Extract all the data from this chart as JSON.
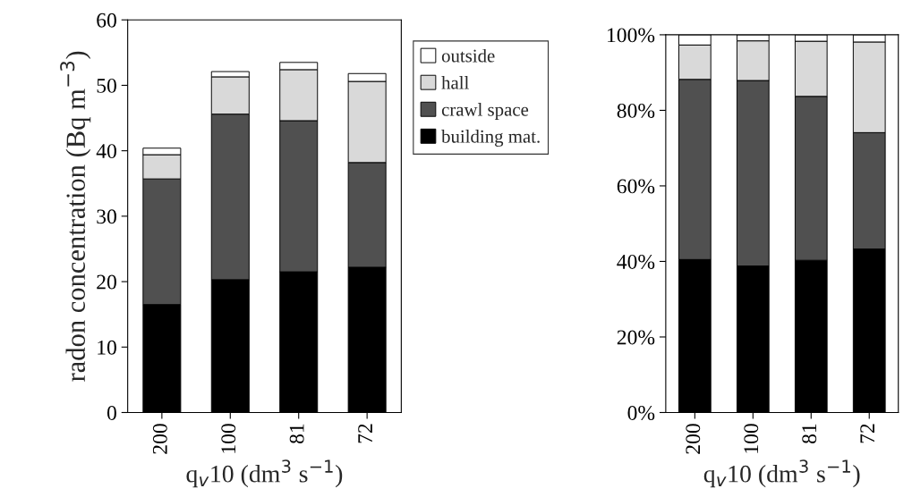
{
  "chart_data": [
    {
      "type": "bar",
      "stacked": true,
      "categories": [
        "200",
        "100",
        "81",
        "72"
      ],
      "xlabel": "q$_{v}$10 (dm$^{3}$ s$^{−1}$)",
      "ylabel": "radon concentration (Bq m$^{−3}$)",
      "ylim": [
        0,
        60
      ],
      "yticks": [
        0,
        10,
        20,
        30,
        40,
        50,
        60
      ],
      "legend": "right",
      "grid": false,
      "series": [
        {
          "name": "building mat.",
          "color": "#000000",
          "values": [
            16.5,
            20.3,
            21.5,
            22.2
          ]
        },
        {
          "name": "crawl space",
          "color": "#505050",
          "values": [
            19.2,
            25.3,
            23.1,
            16.0
          ]
        },
        {
          "name": "hall",
          "color": "#d9d9d9",
          "values": [
            3.7,
            5.7,
            7.8,
            12.4
          ]
        },
        {
          "name": "outside",
          "color": "#ffffff",
          "values": [
            1.0,
            0.8,
            1.1,
            1.2
          ]
        }
      ]
    },
    {
      "type": "bar",
      "stacked": true,
      "categories": [
        "200",
        "100",
        "81",
        "72"
      ],
      "xlabel": "q$_{v}$10 (dm$^{3}$ s$^{−1}$)",
      "ylim": [
        0,
        100
      ],
      "yticks": [
        {
          "value": 0,
          "label": "0%"
        },
        {
          "value": 20,
          "label": "20%"
        },
        {
          "value": 40,
          "label": "40%"
        },
        {
          "value": 60,
          "label": "60%"
        },
        {
          "value": 80,
          "label": "80%"
        },
        {
          "value": 100,
          "label": "100%"
        }
      ],
      "grid": false,
      "series": [
        {
          "color": "#000000",
          "values": [
            40.5,
            38.8,
            40.3,
            43.3
          ]
        },
        {
          "color": "#505050",
          "values": [
            47.7,
            49.1,
            43.4,
            30.8
          ]
        },
        {
          "color": "#d9d9d9",
          "values": [
            9.1,
            10.5,
            14.6,
            24.0
          ]
        },
        {
          "color": "#ffffff",
          "values": [
            2.7,
            1.6,
            1.7,
            1.9
          ]
        }
      ]
    }
  ]
}
